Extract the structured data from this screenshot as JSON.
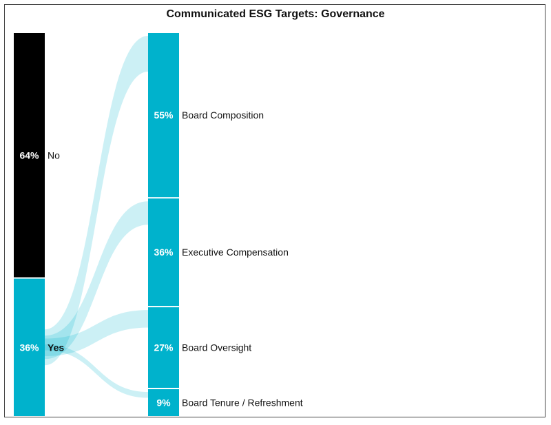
{
  "chart_data": {
    "type": "sankey",
    "title": "Communicated ESG Targets: Governance",
    "colors": {
      "no": "#000000",
      "yes": "#00b2cc",
      "flow": "#00b2cc"
    },
    "source_nodes": [
      {
        "label": "No",
        "value": 64,
        "pct_label": "64%"
      },
      {
        "label": "Yes",
        "value": 36,
        "pct_label": "36%"
      }
    ],
    "target_nodes": [
      {
        "label": "Board Composition",
        "value": 55,
        "pct_label": "55%"
      },
      {
        "label": "Executive Compensation",
        "value": 36,
        "pct_label": "36%"
      },
      {
        "label": "Board Oversight",
        "value": 27,
        "pct_label": "27%"
      },
      {
        "label": "Board Tenure / Refreshment",
        "value": 9,
        "pct_label": "9%"
      }
    ],
    "flows": [
      {
        "from": "Yes",
        "to": "Board Composition",
        "value": 55
      },
      {
        "from": "Yes",
        "to": "Executive Compensation",
        "value": 36
      },
      {
        "from": "Yes",
        "to": "Board Oversight",
        "value": 27
      },
      {
        "from": "Yes",
        "to": "Board Tenure / Refreshment",
        "value": 9
      }
    ]
  }
}
